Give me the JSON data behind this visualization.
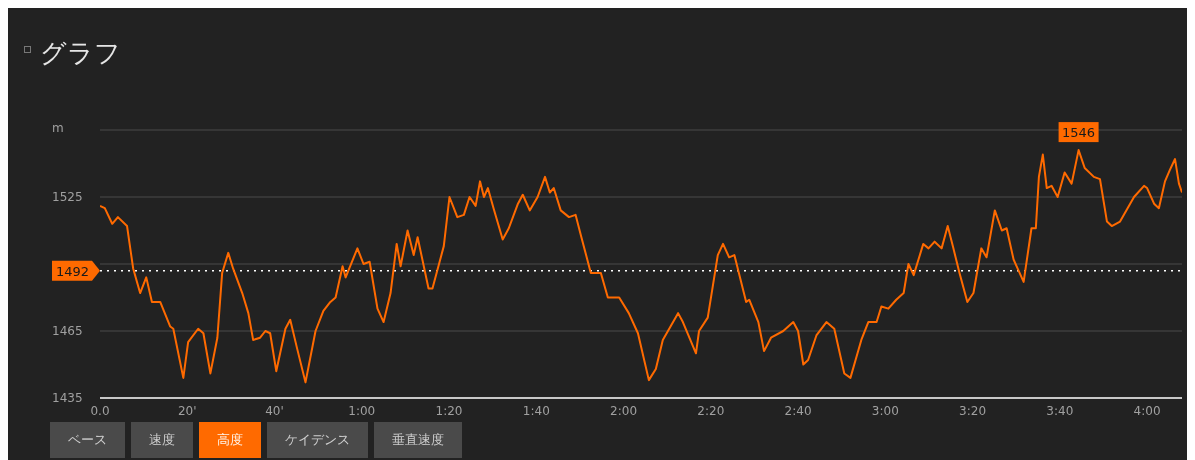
{
  "chart_data": {
    "type": "line",
    "title": "グラフ",
    "ylabel": "m",
    "x": [
      0,
      1.1,
      2.8,
      4.1,
      6.2,
      7.6,
      9.2,
      10.6,
      11.9,
      13.8,
      16.1,
      16.8,
      19.1,
      20.2,
      22.5,
      23.7,
      25.3,
      26.9,
      28,
      29.4,
      30.5,
      32.6,
      34,
      35.1,
      36.7,
      37.9,
      39,
      40.4,
      42.5,
      43.6,
      45.2,
      47.1,
      49.4,
      51.2,
      52.8,
      54,
      55.6,
      56.3,
      59,
      60.4,
      61.8,
      63.6,
      65,
      66.6,
      68,
      68.9,
      70.5,
      71.9,
      72.8,
      75.3,
      76.2,
      78.8,
      80.1,
      81.9,
      83.4,
      84.7,
      86.1,
      87.1,
      88,
      88.9,
      90.2,
      92.3,
      93.7,
      95.8,
      96.9,
      98.5,
      100.3,
      102,
      103.1,
      104,
      105.6,
      107.5,
      109,
      110.2,
      112.5,
      114.8,
      116.4,
      119,
      121.2,
      123.3,
      125.8,
      127.4,
      129,
      132.5,
      133.6,
      136.6,
      137.3,
      139.3,
      141.6,
      142.8,
      144.2,
      145.4,
      148.1,
      148.8,
      150.9,
      152.2,
      153.8,
      156.6,
      158.9,
      160,
      161.2,
      162.3,
      164.2,
      166.5,
      168.3,
      170.6,
      172,
      174.5,
      176.1,
      178,
      179.1,
      180.7,
      182.5,
      184.2,
      185.3,
      186.5,
      188.7,
      189.9,
      191.3,
      192.9,
      194.3,
      195.6,
      197,
      198.8,
      200.2,
      202,
      203.2,
      205.1,
      206.7,
      207.8,
      209.4,
      211.7,
      213.5,
      214.5,
      215.2,
      216.1,
      217,
      218.1,
      219.5,
      221.1,
      222.7,
      224.3,
      225.7,
      227.8,
      229.2,
      230.8,
      231.9,
      233.8,
      237,
      239.3,
      240,
      241.6,
      242.7,
      244.1,
      245.2,
      246.4,
      247.3,
      248
    ],
    "series": [
      {
        "color": "#ff6a00",
        "values": [
          1521,
          1520,
          1513,
          1516,
          1512,
          1493,
          1482,
          1489,
          1478,
          1478,
          1467,
          1466,
          1444,
          1460,
          1466,
          1464,
          1446,
          1462,
          1491,
          1500,
          1493,
          1482,
          1473,
          1461,
          1462,
          1465,
          1464,
          1447,
          1466,
          1470,
          1457,
          1442,
          1465,
          1474,
          1478,
          1480,
          1494,
          1489,
          1502,
          1495,
          1496,
          1475,
          1469,
          1482,
          1504,
          1494,
          1510,
          1499,
          1507,
          1484,
          1484,
          1503,
          1525,
          1516,
          1517,
          1525,
          1521,
          1532,
          1525,
          1529,
          1520,
          1506,
          1511,
          1522,
          1526,
          1519,
          1525,
          1534,
          1527,
          1529,
          1519,
          1516,
          1517,
          1508,
          1491,
          1491,
          1480,
          1480,
          1473,
          1464,
          1443,
          1448,
          1461,
          1473,
          1469,
          1455,
          1465,
          1471,
          1499,
          1504,
          1498,
          1499,
          1478,
          1479,
          1469,
          1456,
          1462,
          1465,
          1469,
          1465,
          1450,
          1452,
          1463,
          1469,
          1466,
          1446,
          1444,
          1461,
          1469,
          1469,
          1476,
          1475,
          1479,
          1482,
          1495,
          1490,
          1504,
          1502,
          1505,
          1502,
          1512,
          1502,
          1491,
          1478,
          1482,
          1502,
          1498,
          1519,
          1510,
          1511,
          1497,
          1487,
          1511,
          1511,
          1534,
          1544,
          1529,
          1530,
          1525,
          1536,
          1531,
          1546,
          1538,
          1534,
          1533,
          1514,
          1512,
          1514,
          1525,
          1530,
          1529,
          1522,
          1520,
          1532,
          1537,
          1542,
          1531,
          1527
        ]
      }
    ],
    "xlim": [
      0,
      248
    ],
    "xticks": [
      {
        "value": 0,
        "label": "0.0"
      },
      {
        "value": 20,
        "label": "20'"
      },
      {
        "value": 40,
        "label": "40'"
      },
      {
        "value": 60,
        "label": "1:00"
      },
      {
        "value": 80,
        "label": "1:20"
      },
      {
        "value": 100,
        "label": "1:40"
      },
      {
        "value": 120,
        "label": "2:00"
      },
      {
        "value": 140,
        "label": "2:20"
      },
      {
        "value": 160,
        "label": "2:40"
      },
      {
        "value": 180,
        "label": "3:00"
      },
      {
        "value": 200,
        "label": "3:20"
      },
      {
        "value": 220,
        "label": "3:40"
      },
      {
        "value": 240,
        "label": "4:00"
      }
    ],
    "ylim": [
      1435,
      1555
    ],
    "yticks": [
      1435,
      1465,
      {
        "value": 1495,
        "label": null
      },
      1525,
      {
        "value": 1555,
        "label": null
      }
    ],
    "grid": "y",
    "marker": "none",
    "line_style": "solid",
    "ref_lines": [
      {
        "axis": "y",
        "value": 1492,
        "label": "1492",
        "color": "#ffffff",
        "line_style": "dotted"
      }
    ],
    "annotations": [
      {
        "text": "1546",
        "x": 224.3,
        "y": 1546
      },
      "ベース",
      "速度",
      "高度",
      "ケイデンス",
      "垂直速度"
    ]
  }
}
